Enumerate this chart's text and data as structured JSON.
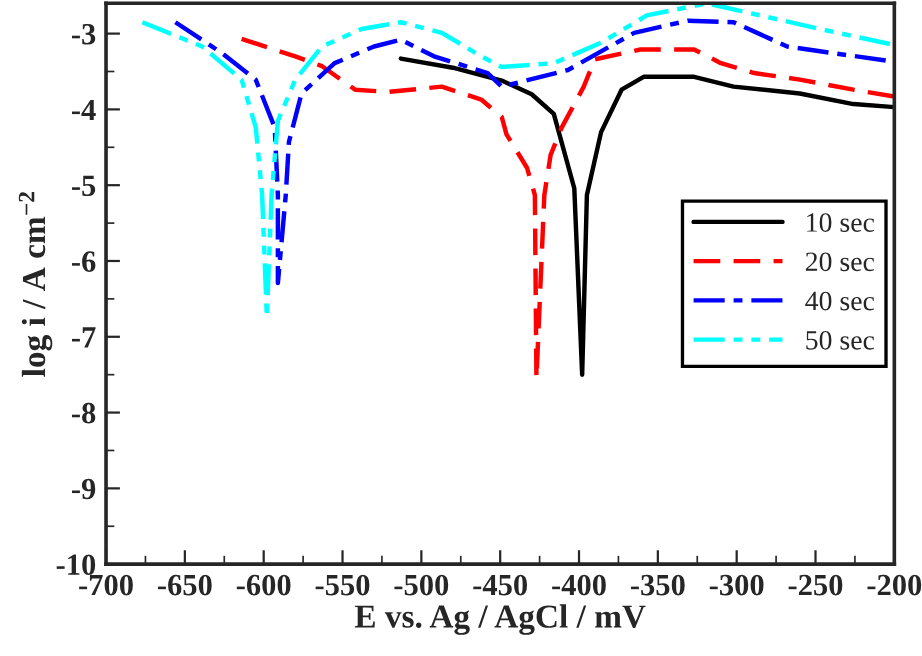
{
  "chart_data": {
    "type": "line",
    "xlabel": "E vs. Ag / AgCl / mV",
    "ylabel": "log i / A cm$^{−2}$",
    "xlim": [
      -700,
      -200
    ],
    "xticks": [
      -700,
      -650,
      -600,
      -550,
      -500,
      -450,
      -400,
      -350,
      -300,
      -250,
      -200
    ],
    "ylim": [
      -10,
      -2.6
    ],
    "yticks": [
      -10,
      -9,
      -8,
      -7,
      -6,
      -5,
      -4,
      -3
    ],
    "grid": false,
    "legend": "right",
    "marker": "none",
    "series": [
      {
        "name": "10 sec",
        "color": "#000000",
        "line_style": "solid",
        "x": [
          -513,
          -480,
          -449,
          -430,
          -416,
          -403,
          -398,
          -395,
          -386,
          -373,
          -359,
          -327,
          -302,
          -260,
          -226,
          -200
        ],
        "values": [
          -3.33,
          -3.45,
          -3.62,
          -3.8,
          -4.06,
          -5.04,
          -7.5,
          -5.13,
          -4.3,
          -3.74,
          -3.57,
          -3.57,
          -3.7,
          -3.79,
          -3.93,
          -3.97
        ]
      },
      {
        "name": "20 sec",
        "color": "#ff0000",
        "line_style": "dashed",
        "x": [
          -614,
          -580,
          -563,
          -542,
          -521,
          -487,
          -462,
          -449,
          -446,
          -433,
          -428,
          -427,
          -422,
          -418,
          -411,
          -397,
          -390,
          -361,
          -327,
          -310,
          -289,
          -259,
          -226,
          -200
        ],
        "values": [
          -3.07,
          -3.3,
          -3.43,
          -3.74,
          -3.77,
          -3.7,
          -3.87,
          -4.1,
          -4.33,
          -4.77,
          -5.13,
          -7.55,
          -5.13,
          -4.6,
          -4.24,
          -3.7,
          -3.34,
          -3.21,
          -3.21,
          -3.39,
          -3.52,
          -3.61,
          -3.74,
          -3.83
        ]
      },
      {
        "name": "40 sec",
        "color": "#0000ff",
        "line_style": "dashdot",
        "x": [
          -656,
          -627,
          -605,
          -593,
          -591,
          -591,
          -586,
          -584,
          -576,
          -555,
          -530,
          -513,
          -492,
          -458,
          -449,
          -407,
          -365,
          -331,
          -302,
          -268,
          -238,
          -200
        ],
        "values": [
          -2.85,
          -3.25,
          -3.61,
          -4.24,
          -5.13,
          -6.29,
          -5.13,
          -4.43,
          -3.79,
          -3.39,
          -3.17,
          -3.08,
          -3.3,
          -3.52,
          -3.7,
          -3.48,
          -2.99,
          -2.83,
          -2.85,
          -3.17,
          -3.26,
          -3.37
        ]
      },
      {
        "name": "50 sec",
        "color": "#00ffff",
        "line_style": "dashdotdot",
        "x": [
          -677,
          -639,
          -614,
          -605,
          -601,
          -598,
          -595,
          -591,
          -580,
          -563,
          -538,
          -513,
          -487,
          -462,
          -449,
          -416,
          -386,
          -357,
          -319,
          -285,
          -247,
          -200
        ],
        "values": [
          -2.85,
          -3.17,
          -3.61,
          -4.24,
          -5.13,
          -6.74,
          -5.13,
          -4.15,
          -3.61,
          -3.17,
          -2.94,
          -2.85,
          -2.99,
          -3.3,
          -3.44,
          -3.39,
          -3.12,
          -2.76,
          -2.6,
          -2.76,
          -2.94,
          -3.15
        ]
      }
    ]
  }
}
